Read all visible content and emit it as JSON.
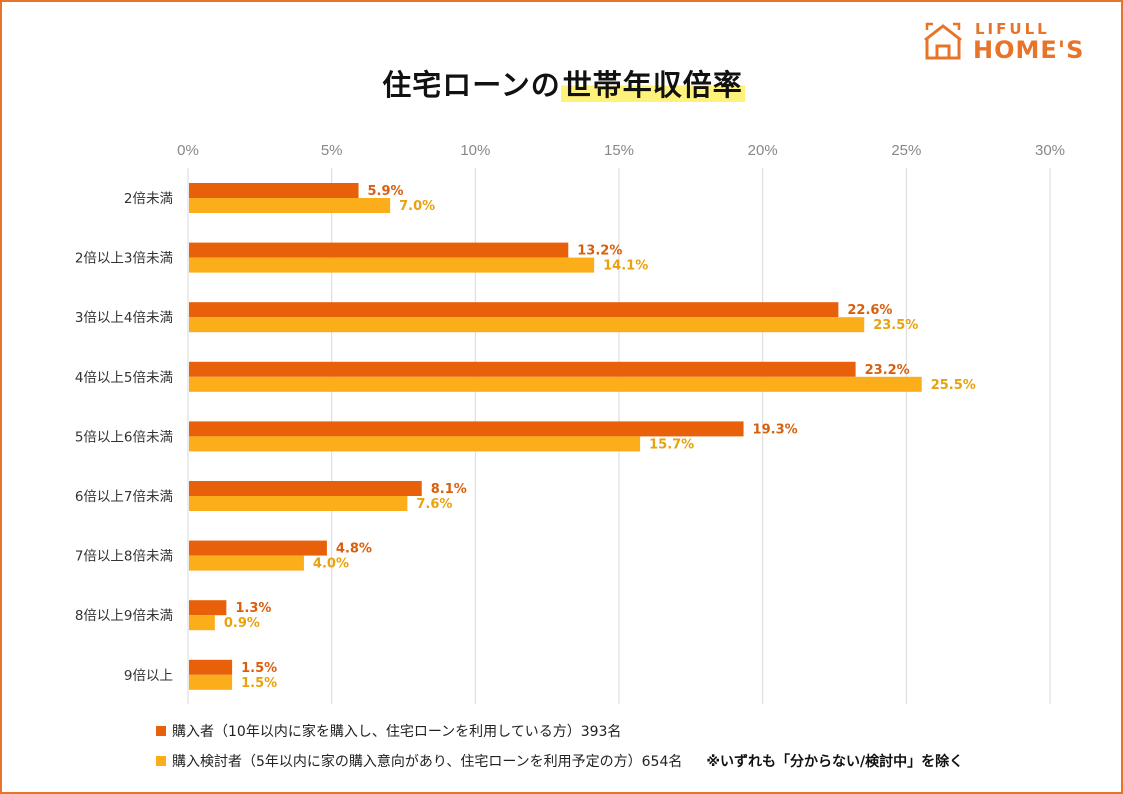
{
  "logo": {
    "brand_top": "LIFULL",
    "brand_bottom": "HOME'S",
    "icon": "house-icon",
    "color": "#e8742a"
  },
  "title": {
    "prefix": "住宅ローンの",
    "highlight": "世帯年収倍率"
  },
  "colors": {
    "series1": "#e8600a",
    "series2": "#fbad1a",
    "grid": "#d9d9d9",
    "axis_text": "#888888",
    "category_text": "#333333",
    "label1": "#d95f0e",
    "label2": "#e9a20e",
    "frame": "#e8742a"
  },
  "chart_data": {
    "type": "bar",
    "orientation": "horizontal",
    "title": "住宅ローンの世帯年収倍率",
    "xlabel": "",
    "ylabel": "",
    "xlim": [
      0,
      30
    ],
    "ticks": [
      0,
      5,
      10,
      15,
      20,
      25,
      30
    ],
    "tick_suffix": "%",
    "grid": true,
    "legend_position": "bottom",
    "categories": [
      "2倍未満",
      "2倍以上3倍未満",
      "3倍以上4倍未満",
      "4倍以上5倍未満",
      "5倍以上6倍未満",
      "6倍以上7倍未満",
      "7倍以上8倍未満",
      "8倍以上9倍未満",
      "9倍以上"
    ],
    "series": [
      {
        "name": "購入者（10年以内に家を購入し、住宅ローンを利用している方）393名",
        "values": [
          5.9,
          13.2,
          22.6,
          23.2,
          19.3,
          8.1,
          4.8,
          1.3,
          1.5
        ]
      },
      {
        "name": "購入検討者（5年以内に家の購入意向があり、住宅ローンを利用予定の方）654名",
        "values": [
          7.0,
          14.1,
          23.5,
          25.5,
          15.7,
          7.6,
          4.0,
          0.9,
          1.5
        ]
      }
    ],
    "note": "※いずれも「分からない/検討中」を除く"
  }
}
